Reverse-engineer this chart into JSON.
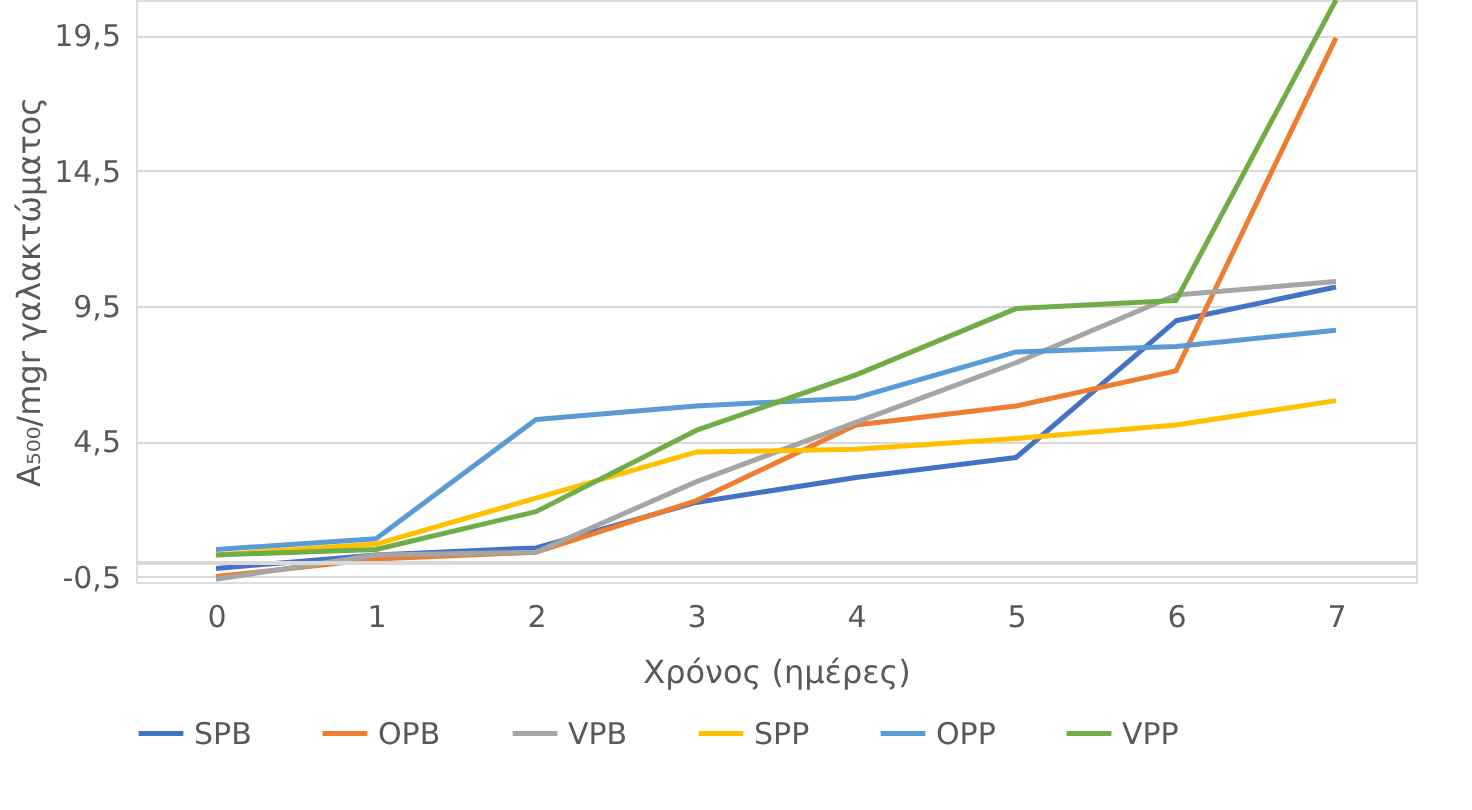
{
  "chart_data": {
    "type": "line",
    "xlabel": "Χρόνος (ημέρες)",
    "ylabel": "A₅₀₀/mgr γαλακτώματος",
    "categories": [
      "0",
      "1",
      "2",
      "3",
      "4",
      "5",
      "6",
      "7"
    ],
    "ylim": [
      -0.7,
      20.8
    ],
    "yticks": [
      {
        "value": -0.5,
        "label": "-0,5"
      },
      {
        "value": 4.5,
        "label": "4,5"
      },
      {
        "value": 9.5,
        "label": "9,5"
      },
      {
        "value": 14.5,
        "label": "14,5"
      },
      {
        "value": 19.5,
        "label": "19,5"
      }
    ],
    "grid": "y",
    "legend": "bottom",
    "marker": "none",
    "line_style": "solid",
    "ref_lines": [
      {
        "axis": "y",
        "value": 0,
        "color": "#d9d9d9"
      }
    ],
    "series": [
      {
        "name": "SPB",
        "color": "#4472c4",
        "values": [
          -0.2,
          0.3,
          0.56,
          2.24,
          3.16,
          3.9,
          8.95,
          10.2
        ]
      },
      {
        "name": "OPB",
        "color": "#ed7d31",
        "values": [
          -0.5,
          0.15,
          0.4,
          2.3,
          5.1,
          5.8,
          7.1,
          19.4
        ]
      },
      {
        "name": "VPB",
        "color": "#a5a5a5",
        "values": [
          -0.6,
          0.3,
          0.4,
          3.0,
          5.2,
          7.4,
          9.9,
          10.4
        ]
      },
      {
        "name": "SPP",
        "color": "#ffc000",
        "values": [
          0.3,
          0.7,
          2.4,
          4.1,
          4.2,
          4.6,
          5.1,
          6.0
        ]
      },
      {
        "name": "OPP",
        "color": "#5b9bd5",
        "values": [
          0.5,
          0.9,
          5.3,
          5.8,
          6.1,
          7.8,
          8.0,
          8.6
        ]
      },
      {
        "name": "VPP",
        "color": "#70ad47",
        "values": [
          0.3,
          0.5,
          1.9,
          4.9,
          6.95,
          9.4,
          9.7,
          20.8
        ]
      }
    ]
  }
}
